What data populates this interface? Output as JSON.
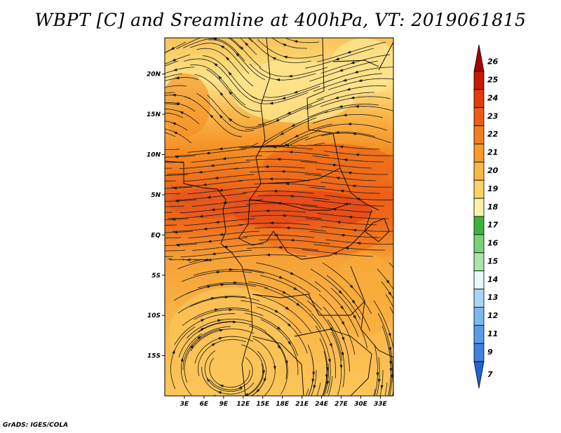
{
  "title": "WBPT [C] and Sreamline at 400hPa, VT: 2019061815",
  "credit": "GrADS: IGES/COLA",
  "map": {
    "lat_ticks": [
      {
        "lat": 20,
        "label": "20N"
      },
      {
        "lat": 15,
        "label": "15N"
      },
      {
        "lat": 10,
        "label": "10N"
      },
      {
        "lat": 5,
        "label": "5N"
      },
      {
        "lat": 0,
        "label": "EQ"
      },
      {
        "lat": -5,
        "label": "5S"
      },
      {
        "lat": -10,
        "label": "10S"
      },
      {
        "lat": -15,
        "label": "15S"
      }
    ],
    "lon_ticks": [
      {
        "lon": 3,
        "label": "3E"
      },
      {
        "lon": 6,
        "label": "6E"
      },
      {
        "lon": 9,
        "label": "9E"
      },
      {
        "lon": 12,
        "label": "12E"
      },
      {
        "lon": 15,
        "label": "15E"
      },
      {
        "lon": 18,
        "label": "18E"
      },
      {
        "lon": 21,
        "label": "21E"
      },
      {
        "lon": 24,
        "label": "24E"
      },
      {
        "lon": 27,
        "label": "27E"
      },
      {
        "lon": 30,
        "label": "30E"
      },
      {
        "lon": 33,
        "label": "33E"
      }
    ],
    "lat_range": [
      -20,
      24.5
    ],
    "lon_range": [
      0,
      35
    ],
    "field_colors": {
      "pale": "#fde38a",
      "light": "#fbc95a",
      "mid": "#f8ac3a",
      "orange": "#f48c22",
      "deep": "#ee6a1a",
      "red": "#e4471a"
    }
  },
  "colorbar": {
    "labels": [
      "26",
      "25",
      "24",
      "23",
      "22",
      "21",
      "20",
      "19",
      "18",
      "17",
      "16",
      "15",
      "14",
      "13",
      "12",
      "11",
      "9",
      "7"
    ],
    "colors": [
      "#a80000",
      "#c81a00",
      "#e03c0c",
      "#ec5c18",
      "#f47e1e",
      "#f89a2a",
      "#fbb644",
      "#fdd266",
      "#fdf0a8",
      "#3cb43c",
      "#78d278",
      "#aae6aa",
      "#e6fafa",
      "#a8d4f8",
      "#7cb8f0",
      "#5a9ce8",
      "#3c82de",
      "#2064d2"
    ]
  }
}
